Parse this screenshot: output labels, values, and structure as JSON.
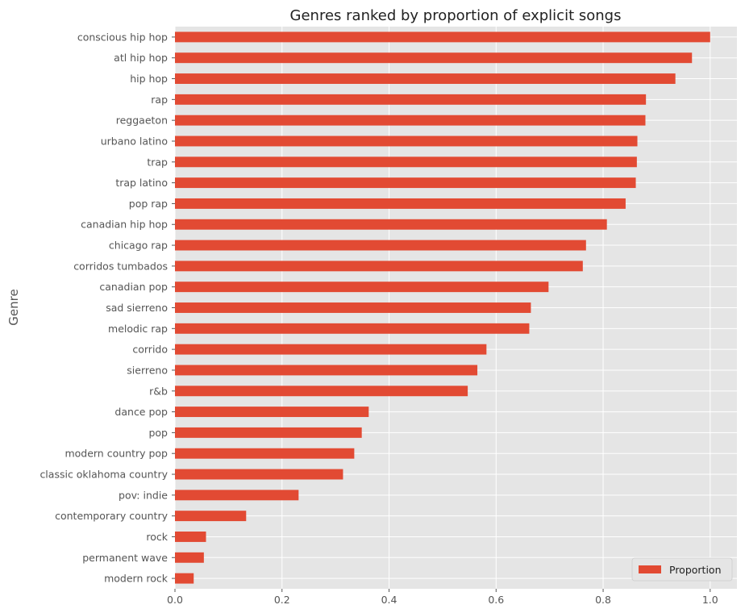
{
  "chart_data": {
    "type": "bar",
    "orientation": "horizontal",
    "title": "Genres ranked by proportion of explicit songs",
    "xlabel": "",
    "ylabel": "Genre",
    "xlim": [
      0,
      1.05
    ],
    "xticks": [
      "0.0",
      "0.2",
      "0.4",
      "0.6",
      "0.8",
      "1.0"
    ],
    "grid": true,
    "legend_position": "bottom-right",
    "bar_color": "#E24A33",
    "background_color": "#E5E5E5",
    "categories": [
      "conscious hip hop",
      "atl hip hop",
      "hip hop",
      "rap",
      "reggaeton",
      "urbano latino",
      "trap",
      "trap latino",
      "pop rap",
      "canadian hip hop",
      "chicago rap",
      "corridos tumbados",
      "canadian pop",
      "sad sierreno",
      "melodic rap",
      "corrido",
      "sierreno",
      "r&b",
      "dance pop",
      "pop",
      "modern country pop",
      "classic oklahoma country",
      "pov: indie",
      "contemporary country",
      "rock",
      "permanent wave",
      "modern rock"
    ],
    "series": [
      {
        "name": "Proportion",
        "values": [
          1.0,
          0.966,
          0.935,
          0.88,
          0.879,
          0.864,
          0.863,
          0.861,
          0.842,
          0.807,
          0.768,
          0.762,
          0.698,
          0.665,
          0.662,
          0.582,
          0.565,
          0.547,
          0.362,
          0.349,
          0.335,
          0.314,
          0.231,
          0.133,
          0.058,
          0.054,
          0.035
        ]
      }
    ]
  }
}
